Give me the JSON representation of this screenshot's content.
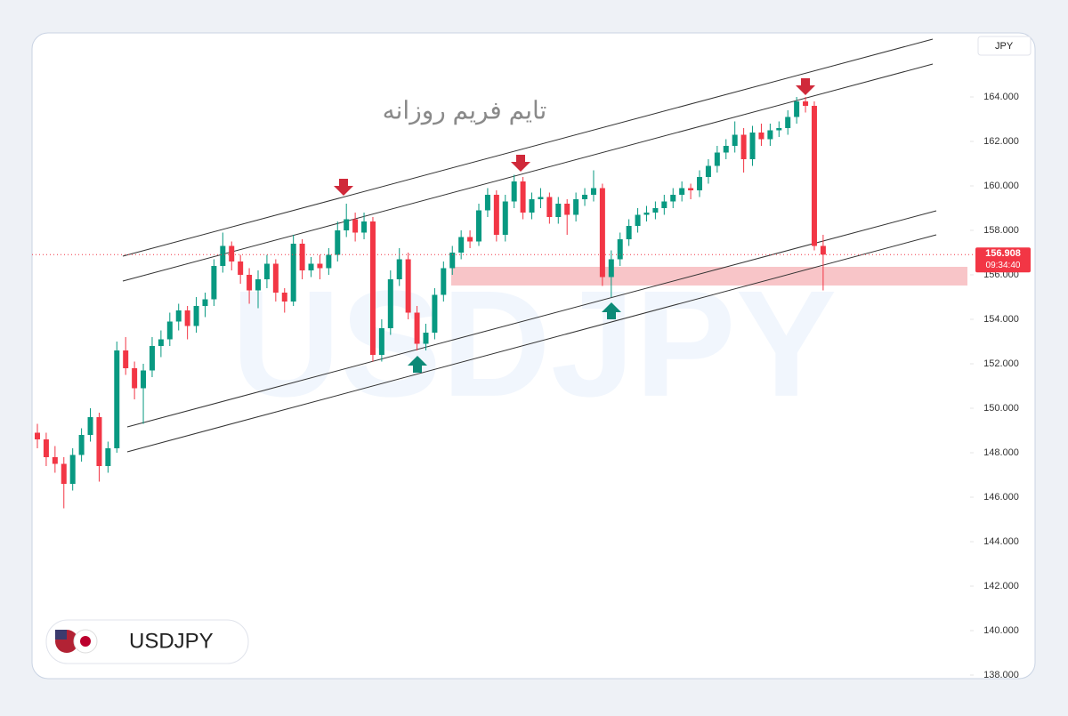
{
  "chart_data": {
    "type": "candlestick",
    "title": "تایم فریم روزانه",
    "watermark": "USDJPY",
    "symbol": "USDJPY",
    "currency": "JPY",
    "up_color": "#089981",
    "down_color": "#f23645",
    "ylim": [
      137.84,
      166.84
    ],
    "yticks": [
      {
        "value": 138,
        "label": "138.000"
      },
      {
        "value": 140,
        "label": "140.000"
      },
      {
        "value": 142,
        "label": "142.000"
      },
      {
        "value": 144,
        "label": "144.000"
      },
      {
        "value": 146,
        "label": "146.000"
      },
      {
        "value": 148,
        "label": "148.000"
      },
      {
        "value": 150,
        "label": "150.000"
      },
      {
        "value": 152,
        "label": "152.000"
      },
      {
        "value": 154,
        "label": "154.000"
      },
      {
        "value": 156,
        "label": "156.000"
      },
      {
        "value": 158,
        "label": "158.000"
      },
      {
        "value": 160,
        "label": "160.000"
      },
      {
        "value": 162,
        "label": "162.000"
      },
      {
        "value": 164,
        "label": "164.000"
      }
    ],
    "last_price": 156.908,
    "countdown": "09:34:40",
    "ohlc": [
      [
        148.9,
        149.3,
        148.2,
        148.6
      ],
      [
        148.6,
        148.9,
        147.4,
        147.8
      ],
      [
        147.8,
        148.3,
        147.1,
        147.5
      ],
      [
        147.5,
        147.8,
        145.5,
        146.6
      ],
      [
        146.6,
        148.2,
        146.3,
        147.9
      ],
      [
        147.9,
        149.1,
        147.6,
        148.8
      ],
      [
        148.8,
        150.0,
        148.5,
        149.6
      ],
      [
        149.6,
        149.8,
        146.7,
        147.4
      ],
      [
        147.4,
        148.5,
        147.1,
        148.2
      ],
      [
        148.2,
        153.0,
        148.0,
        152.6
      ],
      [
        152.6,
        153.2,
        151.5,
        151.8
      ],
      [
        151.8,
        152.1,
        150.4,
        150.9
      ],
      [
        150.9,
        152.0,
        149.3,
        151.7
      ],
      [
        151.7,
        153.2,
        151.4,
        152.8
      ],
      [
        152.8,
        153.5,
        152.3,
        153.1
      ],
      [
        153.1,
        154.3,
        152.8,
        153.9
      ],
      [
        153.9,
        154.7,
        153.5,
        154.4
      ],
      [
        154.4,
        154.6,
        153.1,
        153.7
      ],
      [
        153.7,
        155.0,
        153.4,
        154.6
      ],
      [
        154.6,
        155.2,
        154.1,
        154.9
      ],
      [
        154.9,
        156.7,
        154.6,
        156.4
      ],
      [
        156.4,
        157.9,
        156.1,
        157.3
      ],
      [
        157.3,
        157.5,
        156.2,
        156.6
      ],
      [
        156.6,
        156.9,
        155.6,
        156.0
      ],
      [
        156.0,
        156.3,
        154.7,
        155.3
      ],
      [
        155.3,
        156.2,
        154.5,
        155.8
      ],
      [
        155.8,
        156.9,
        155.4,
        156.5
      ],
      [
        156.5,
        156.7,
        154.8,
        155.2
      ],
      [
        155.2,
        155.4,
        154.3,
        154.8
      ],
      [
        154.8,
        157.8,
        154.6,
        157.4
      ],
      [
        157.4,
        157.6,
        155.8,
        156.2
      ],
      [
        156.2,
        156.8,
        155.9,
        156.5
      ],
      [
        156.5,
        156.9,
        155.8,
        156.3
      ],
      [
        156.3,
        157.2,
        156.0,
        156.9
      ],
      [
        156.9,
        158.4,
        156.6,
        158.0
      ],
      [
        158.0,
        159.2,
        157.7,
        158.5
      ],
      [
        158.5,
        158.8,
        157.5,
        157.9
      ],
      [
        157.9,
        158.8,
        157.6,
        158.4
      ],
      [
        158.4,
        158.6,
        152.1,
        152.4
      ],
      [
        152.4,
        154.0,
        152.1,
        153.6
      ],
      [
        153.6,
        156.2,
        153.3,
        155.8
      ],
      [
        155.8,
        157.2,
        155.5,
        156.7
      ],
      [
        156.7,
        157.0,
        154.0,
        154.3
      ],
      [
        154.3,
        154.6,
        152.6,
        152.9
      ],
      [
        152.9,
        153.8,
        152.6,
        153.4
      ],
      [
        153.4,
        155.4,
        153.1,
        155.1
      ],
      [
        155.1,
        156.6,
        154.8,
        156.3
      ],
      [
        156.3,
        157.3,
        156.0,
        157.0
      ],
      [
        157.0,
        158.0,
        156.7,
        157.7
      ],
      [
        157.7,
        158.0,
        157.2,
        157.5
      ],
      [
        157.5,
        159.2,
        157.3,
        158.9
      ],
      [
        158.9,
        159.9,
        158.6,
        159.6
      ],
      [
        159.6,
        159.8,
        157.5,
        157.8
      ],
      [
        157.8,
        159.6,
        157.5,
        159.3
      ],
      [
        159.3,
        160.5,
        159.0,
        160.2
      ],
      [
        160.2,
        160.4,
        158.5,
        158.8
      ],
      [
        158.8,
        159.7,
        158.5,
        159.4
      ],
      [
        159.4,
        159.9,
        159.0,
        159.5
      ],
      [
        159.5,
        159.7,
        158.3,
        158.6
      ],
      [
        158.6,
        159.5,
        158.3,
        159.2
      ],
      [
        159.2,
        159.4,
        157.8,
        158.7
      ],
      [
        158.7,
        159.7,
        158.4,
        159.4
      ],
      [
        159.4,
        159.9,
        159.1,
        159.6
      ],
      [
        159.6,
        160.7,
        159.3,
        159.9
      ],
      [
        159.9,
        160.1,
        155.5,
        155.9
      ],
      [
        155.9,
        157.1,
        155.0,
        156.7
      ],
      [
        156.7,
        157.9,
        156.4,
        157.6
      ],
      [
        157.6,
        158.5,
        157.3,
        158.2
      ],
      [
        158.2,
        159.0,
        157.9,
        158.7
      ],
      [
        158.7,
        159.1,
        158.4,
        158.8
      ],
      [
        158.8,
        159.3,
        158.5,
        159.0
      ],
      [
        159.0,
        159.6,
        158.7,
        159.3
      ],
      [
        159.3,
        159.9,
        159.0,
        159.6
      ],
      [
        159.6,
        160.2,
        159.3,
        159.9
      ],
      [
        159.9,
        160.1,
        159.4,
        159.8
      ],
      [
        159.8,
        160.7,
        159.5,
        160.4
      ],
      [
        160.4,
        161.2,
        160.1,
        160.9
      ],
      [
        160.9,
        161.8,
        160.6,
        161.5
      ],
      [
        161.5,
        162.1,
        161.2,
        161.8
      ],
      [
        161.8,
        162.9,
        161.5,
        162.3
      ],
      [
        162.3,
        162.6,
        160.6,
        161.2
      ],
      [
        161.2,
        162.7,
        160.9,
        162.4
      ],
      [
        162.4,
        162.8,
        161.8,
        162.1
      ],
      [
        162.1,
        162.8,
        161.8,
        162.5
      ],
      [
        162.5,
        162.9,
        162.2,
        162.6
      ],
      [
        162.6,
        163.4,
        162.3,
        163.1
      ],
      [
        163.1,
        164.0,
        162.8,
        163.8
      ],
      [
        163.8,
        164.0,
        163.3,
        163.6
      ],
      [
        163.6,
        163.8,
        157.1,
        157.3
      ],
      [
        157.3,
        157.8,
        155.3,
        156.908
      ]
    ]
  }
}
